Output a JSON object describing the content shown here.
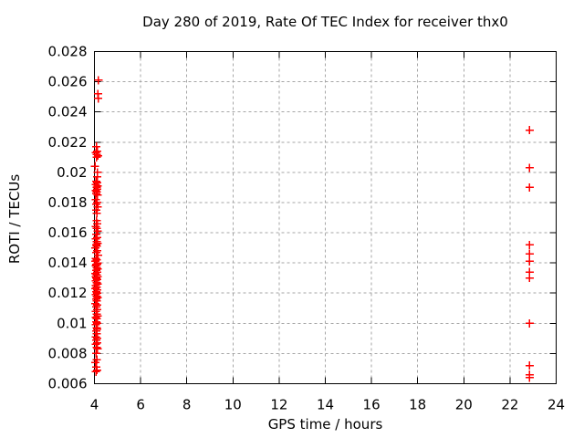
{
  "window": {
    "background": "#ffffff"
  },
  "chart_data": {
    "type": "scatter",
    "title": "Day 280 of 2019, Rate Of TEC Index for receiver thx0",
    "xlabel": "GPS time / hours",
    "ylabel": "ROTI / TECUs",
    "xlim": [
      4,
      24
    ],
    "ylim": [
      0.006,
      0.028
    ],
    "x_ticks": [
      4,
      6,
      8,
      10,
      12,
      14,
      16,
      18,
      20,
      22,
      24
    ],
    "x_tick_labels": [
      "4",
      "6",
      "8",
      "10",
      "12",
      "14",
      "16",
      "18",
      "20",
      "22",
      "24"
    ],
    "y_ticks": [
      0.006,
      0.008,
      0.01,
      0.012,
      0.014,
      0.016,
      0.018,
      0.02,
      0.022,
      0.024,
      0.026,
      0.028
    ],
    "y_tick_labels": [
      "0.006",
      "0.008",
      "0.01",
      "0.012",
      "0.014",
      "0.016",
      "0.018",
      "0.02",
      "0.022",
      "0.024",
      "0.026",
      "0.028"
    ],
    "grid": true,
    "legend": "none",
    "axis_color": "#000000",
    "grid_color": "#a6a6a6",
    "marker": {
      "shape": "plus",
      "color": "#ff0000",
      "size": 9
    },
    "series": [
      {
        "name": "ROTI",
        "points": [
          [
            4.17,
            0.0261
          ],
          [
            4.15,
            0.0252
          ],
          [
            4.16,
            0.0249
          ],
          [
            4.08,
            0.0217
          ],
          [
            4.12,
            0.0214
          ],
          [
            4.06,
            0.0213
          ],
          [
            4.1,
            0.0212
          ],
          [
            4.15,
            0.0211
          ],
          [
            4.09,
            0.021
          ],
          [
            4.02,
            0.0204
          ],
          [
            4.13,
            0.02
          ],
          [
            4.12,
            0.0197
          ],
          [
            4.07,
            0.0194
          ],
          [
            4.11,
            0.0193
          ],
          [
            4.05,
            0.0192
          ],
          [
            4.14,
            0.0191
          ],
          [
            4.09,
            0.019
          ],
          [
            4.12,
            0.0189
          ],
          [
            4.06,
            0.0188
          ],
          [
            4.1,
            0.0187
          ],
          [
            4.08,
            0.0186
          ],
          [
            4.13,
            0.0185
          ],
          [
            4.05,
            0.0182
          ],
          [
            4.11,
            0.018
          ],
          [
            4.08,
            0.0179
          ],
          [
            4.14,
            0.0177
          ],
          [
            4.07,
            0.0175
          ],
          [
            4.1,
            0.0173
          ],
          [
            4.09,
            0.0168
          ],
          [
            4.12,
            0.0166
          ],
          [
            4.06,
            0.0164
          ],
          [
            4.1,
            0.0163
          ],
          [
            4.14,
            0.0161
          ],
          [
            4.08,
            0.0159
          ],
          [
            4.11,
            0.0157
          ],
          [
            4.05,
            0.0156
          ],
          [
            4.09,
            0.0154
          ],
          [
            4.13,
            0.0153
          ],
          [
            4.07,
            0.0152
          ],
          [
            4.1,
            0.0151
          ],
          [
            4.04,
            0.015
          ],
          [
            4.12,
            0.0148
          ],
          [
            4.08,
            0.0147
          ],
          [
            4.15,
            0.0145
          ],
          [
            4.06,
            0.0143
          ],
          [
            4.1,
            0.0142
          ],
          [
            4.03,
            0.0141
          ],
          [
            4.13,
            0.014
          ],
          [
            4.08,
            0.0139
          ],
          [
            4.11,
            0.0139
          ],
          [
            4.05,
            0.0138
          ],
          [
            4.09,
            0.0137
          ],
          [
            4.14,
            0.0136
          ],
          [
            4.07,
            0.0135
          ],
          [
            4.12,
            0.0134
          ],
          [
            4.04,
            0.0133
          ],
          [
            4.1,
            0.0132
          ],
          [
            4.06,
            0.0131
          ],
          [
            4.13,
            0.0131
          ],
          [
            4.08,
            0.013
          ],
          [
            4.11,
            0.0129
          ],
          [
            4.05,
            0.0128
          ],
          [
            4.09,
            0.0127
          ],
          [
            4.13,
            0.0126
          ],
          [
            4.06,
            0.0125
          ],
          [
            4.1,
            0.0124
          ],
          [
            4.04,
            0.0123
          ],
          [
            4.12,
            0.0122
          ],
          [
            4.07,
            0.0121
          ],
          [
            4.11,
            0.012
          ],
          [
            4.05,
            0.0119
          ],
          [
            4.09,
            0.0118
          ],
          [
            4.14,
            0.0117
          ],
          [
            4.07,
            0.0116
          ],
          [
            4.1,
            0.0115
          ],
          [
            4.04,
            0.0113
          ],
          [
            4.12,
            0.0112
          ],
          [
            4.08,
            0.0111
          ],
          [
            4.11,
            0.0109
          ],
          [
            4.06,
            0.0108
          ],
          [
            4.09,
            0.0106
          ],
          [
            4.13,
            0.0105
          ],
          [
            4.05,
            0.0104
          ],
          [
            4.1,
            0.0103
          ],
          [
            4.08,
            0.0101
          ],
          [
            4.12,
            0.01
          ],
          [
            4.06,
            0.0099
          ],
          [
            4.09,
            0.0097
          ],
          [
            4.11,
            0.0096
          ],
          [
            4.07,
            0.0095
          ],
          [
            4.1,
            0.0093
          ],
          [
            4.05,
            0.0091
          ],
          [
            4.12,
            0.009
          ],
          [
            4.08,
            0.0089
          ],
          [
            4.11,
            0.0087
          ],
          [
            4.06,
            0.0086
          ],
          [
            4.09,
            0.0084
          ],
          [
            4.13,
            0.0083
          ],
          [
            4.07,
            0.008
          ],
          [
            4.1,
            0.0076
          ],
          [
            4.04,
            0.0074
          ],
          [
            4.08,
            0.0071
          ],
          [
            4.11,
            0.0069
          ],
          [
            4.06,
            0.0068
          ],
          [
            22.85,
            0.0228
          ],
          [
            22.85,
            0.0203
          ],
          [
            22.85,
            0.019
          ],
          [
            22.85,
            0.0152
          ],
          [
            22.85,
            0.0146
          ],
          [
            22.85,
            0.0141
          ],
          [
            22.85,
            0.0134
          ],
          [
            22.85,
            0.013
          ],
          [
            22.85,
            0.01
          ],
          [
            22.85,
            0.0072
          ],
          [
            22.85,
            0.0066
          ],
          [
            22.85,
            0.0064
          ]
        ]
      }
    ]
  }
}
